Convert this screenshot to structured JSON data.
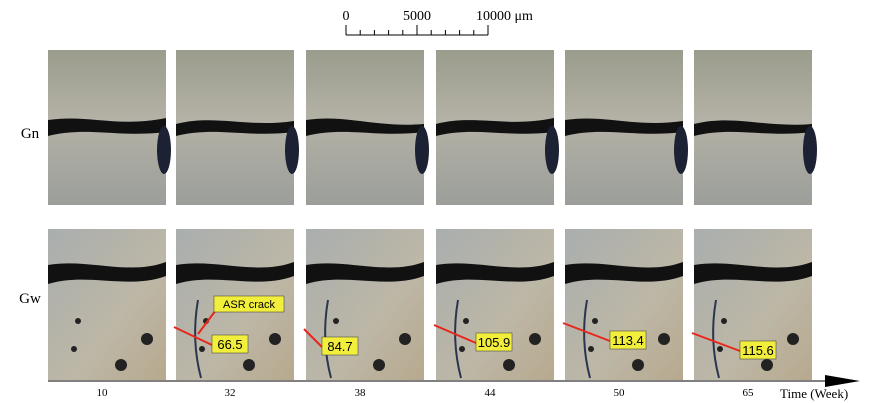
{
  "scale_bar": {
    "labels": [
      "0",
      "5000",
      "10000 μm"
    ]
  },
  "rows": [
    {
      "label": "Gn"
    },
    {
      "label": "Gw",
      "annotation": "ASR crack"
    }
  ],
  "columns": [
    {
      "time": "10"
    },
    {
      "time": "32",
      "crack_width": "66.5"
    },
    {
      "time": "38",
      "crack_width": "84.7"
    },
    {
      "time": "44",
      "crack_width": "105.9"
    },
    {
      "time": "50",
      "crack_width": "113.4"
    },
    {
      "time": "65",
      "crack_width": "115.6"
    }
  ],
  "axis_label": "Time (Week)"
}
